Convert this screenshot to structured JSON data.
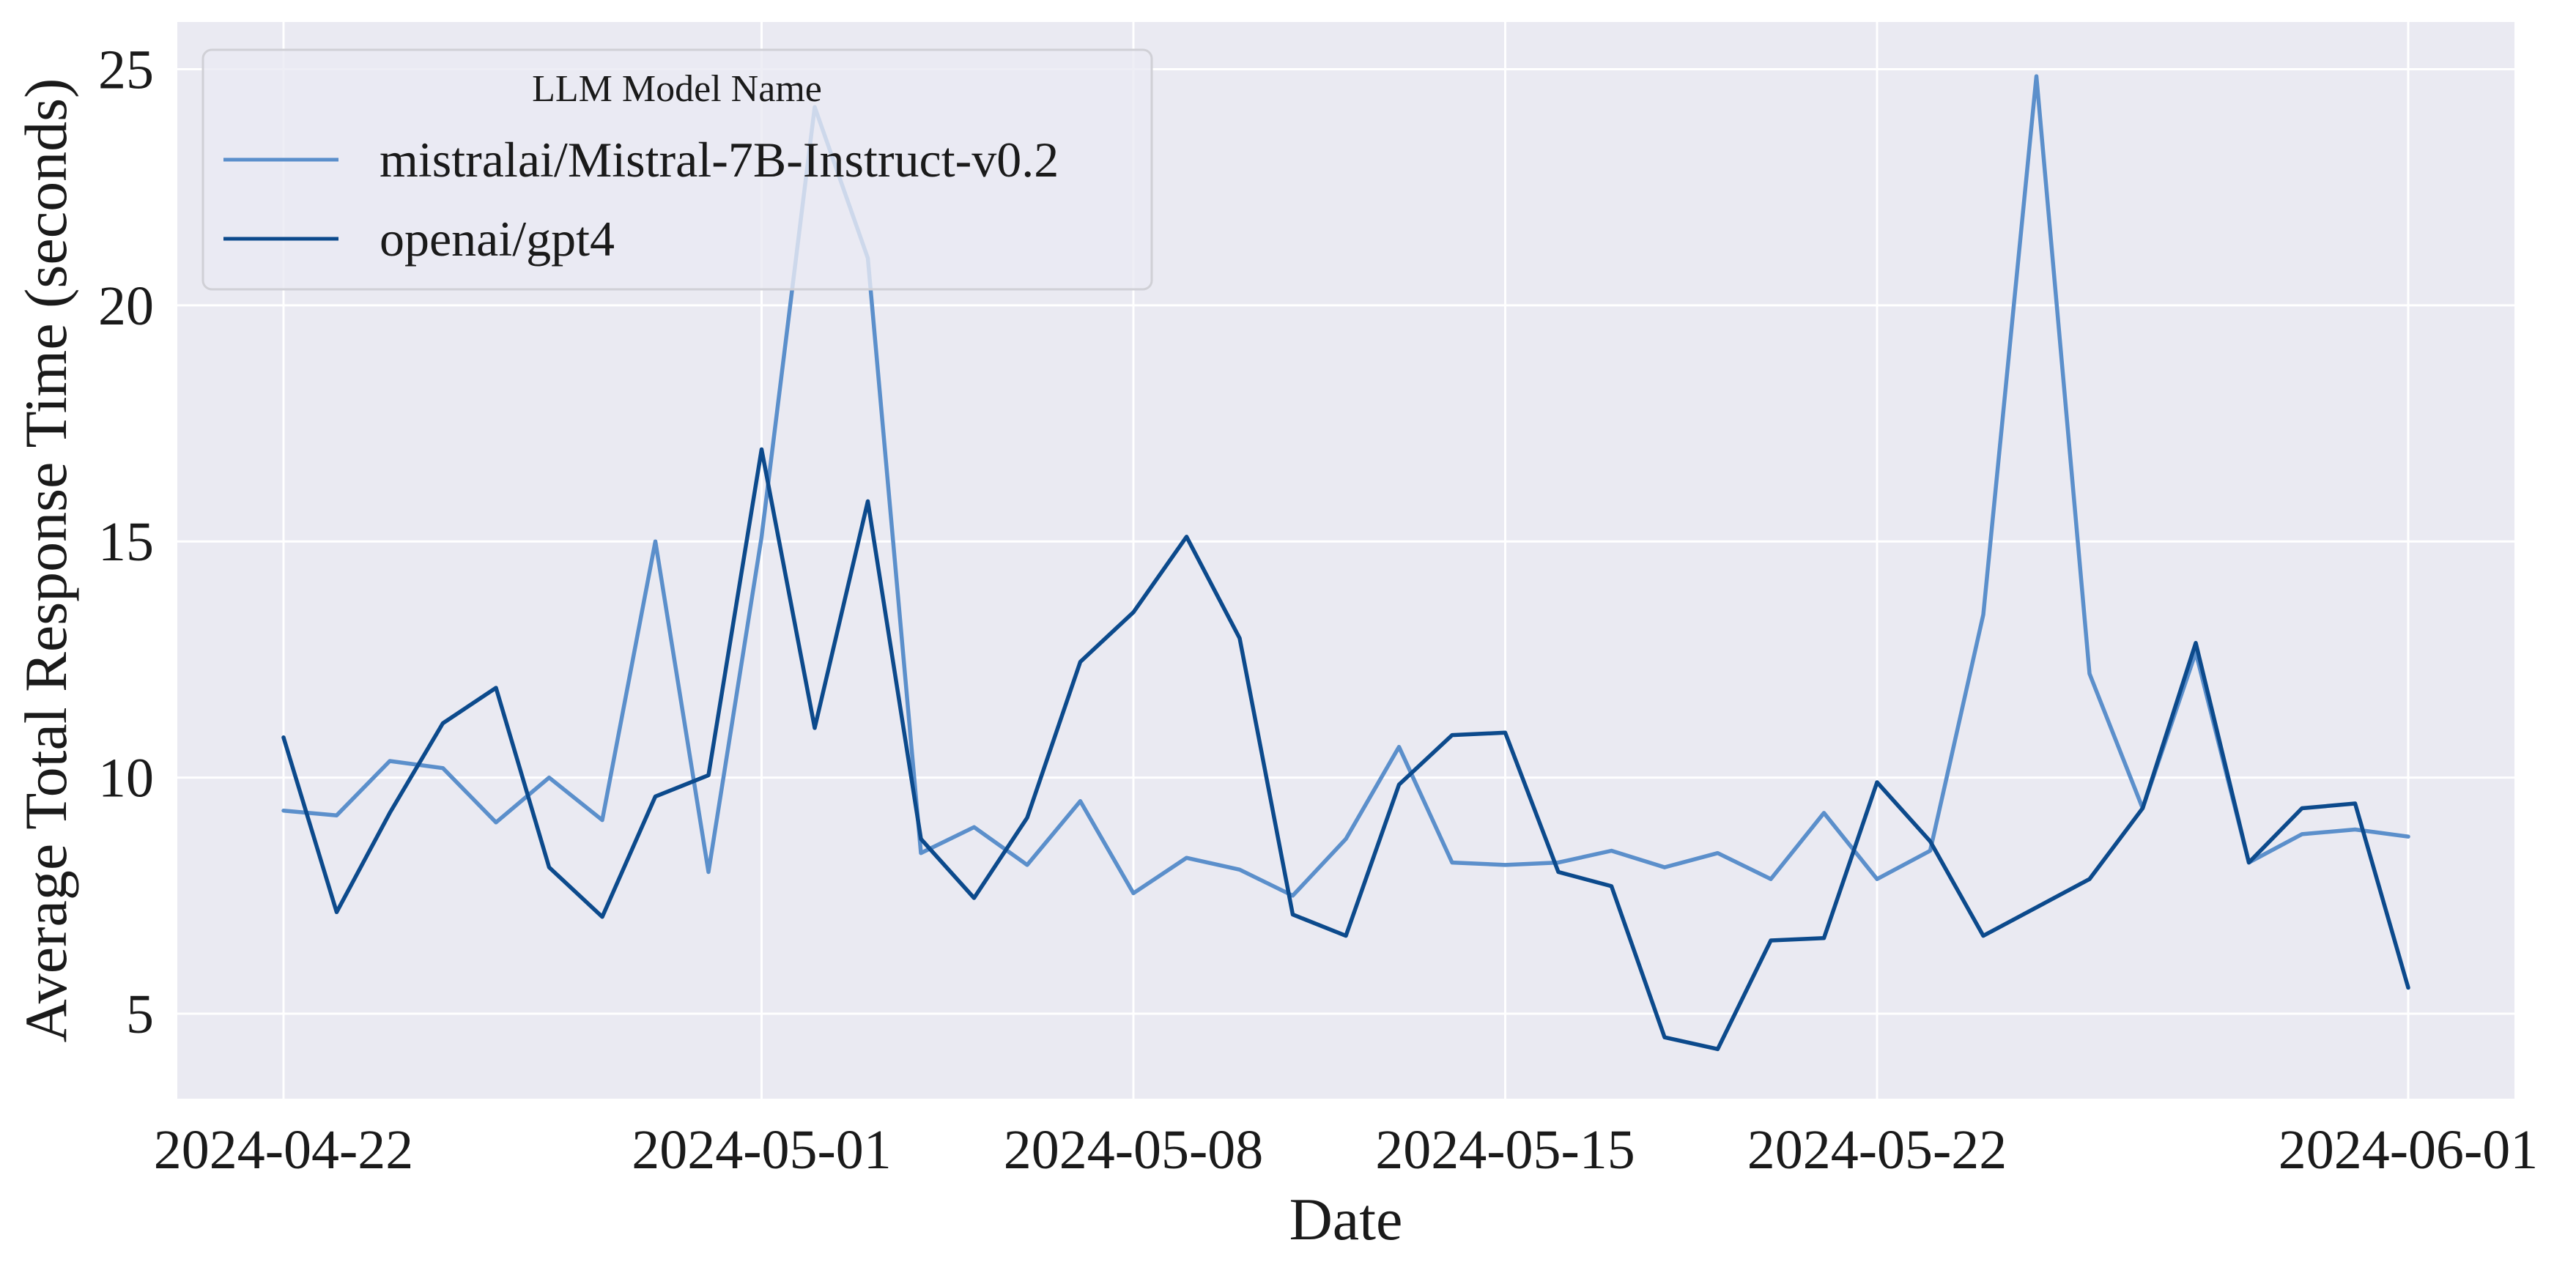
{
  "chart_data": {
    "type": "line",
    "title": "",
    "xlabel": "Date",
    "ylabel": "Average Total Response Time (seconds)",
    "xlim": [
      "2024-04-20",
      "2024-06-03"
    ],
    "ylim": [
      3.2,
      26.0
    ],
    "yticks": [
      5,
      10,
      15,
      20,
      25
    ],
    "xticks": [
      "2024-04-22",
      "2024-05-01",
      "2024-05-08",
      "2024-05-15",
      "2024-05-22",
      "2024-06-01"
    ],
    "grid": true,
    "legend": {
      "title": "LLM Model Name",
      "position": "top-left"
    },
    "series": [
      {
        "name": "mistralai/Mistral-7B-Instruct-v0.2",
        "color": "#5b8fcb",
        "points": [
          [
            "2024-04-22",
            9.3
          ],
          [
            "2024-04-23",
            9.2
          ],
          [
            "2024-04-24",
            10.35
          ],
          [
            "2024-04-25",
            10.2
          ],
          [
            "2024-04-26",
            9.05
          ],
          [
            "2024-04-27",
            10.0
          ],
          [
            "2024-04-28",
            9.1
          ],
          [
            "2024-04-29",
            15.0
          ],
          [
            "2024-04-30",
            8.0
          ],
          [
            "2024-05-01",
            15.1
          ],
          [
            "2024-05-02",
            24.2
          ],
          [
            "2024-05-03",
            21.0
          ],
          [
            "2024-05-04",
            8.4
          ],
          [
            "2024-05-05",
            8.95
          ],
          [
            "2024-05-06",
            8.15
          ],
          [
            "2024-05-07",
            9.5
          ],
          [
            "2024-05-08",
            7.55
          ],
          [
            "2024-05-09",
            8.3
          ],
          [
            "2024-05-10",
            8.05
          ],
          [
            "2024-05-11",
            7.5
          ],
          [
            "2024-05-12",
            8.7
          ],
          [
            "2024-05-13",
            10.65
          ],
          [
            "2024-05-14",
            8.2
          ],
          [
            "2024-05-15",
            8.15
          ],
          [
            "2024-05-16",
            8.2
          ],
          [
            "2024-05-17",
            8.45
          ],
          [
            "2024-05-18",
            8.1
          ],
          [
            "2024-05-19",
            8.4
          ],
          [
            "2024-05-20",
            7.85
          ],
          [
            "2024-05-21",
            9.25
          ],
          [
            "2024-05-22",
            7.85
          ],
          [
            "2024-05-23",
            8.45
          ],
          [
            "2024-05-24",
            13.45
          ],
          [
            "2024-05-25",
            24.85
          ],
          [
            "2024-05-26",
            12.2
          ],
          [
            "2024-05-27",
            9.35
          ],
          [
            "2024-05-28",
            12.65
          ],
          [
            "2024-05-29",
            8.2
          ],
          [
            "2024-05-30",
            8.8
          ],
          [
            "2024-05-31",
            8.9
          ],
          [
            "2024-06-01",
            8.75
          ]
        ]
      },
      {
        "name": "openai/gpt4",
        "color": "#0c4a8c",
        "points": [
          [
            "2024-04-22",
            10.85
          ],
          [
            "2024-04-23",
            7.15
          ],
          [
            "2024-04-24",
            9.25
          ],
          [
            "2024-04-25",
            11.15
          ],
          [
            "2024-04-26",
            11.9
          ],
          [
            "2024-04-27",
            8.1
          ],
          [
            "2024-04-28",
            7.05
          ],
          [
            "2024-04-29",
            9.6
          ],
          [
            "2024-04-30",
            10.05
          ],
          [
            "2024-05-01",
            16.95
          ],
          [
            "2024-05-02",
            11.05
          ],
          [
            "2024-05-03",
            15.85
          ],
          [
            "2024-05-04",
            8.7
          ],
          [
            "2024-05-05",
            7.45
          ],
          [
            "2024-05-06",
            9.15
          ],
          [
            "2024-05-07",
            12.45
          ],
          [
            "2024-05-08",
            13.5
          ],
          [
            "2024-05-09",
            15.1
          ],
          [
            "2024-05-10",
            12.95
          ],
          [
            "2024-05-11",
            7.1
          ],
          [
            "2024-05-12",
            6.65
          ],
          [
            "2024-05-13",
            9.85
          ],
          [
            "2024-05-14",
            10.9
          ],
          [
            "2024-05-15",
            10.95
          ],
          [
            "2024-05-16",
            8.0
          ],
          [
            "2024-05-17",
            7.7
          ],
          [
            "2024-05-18",
            4.5
          ],
          [
            "2024-05-19",
            4.25
          ],
          [
            "2024-05-20",
            6.55
          ],
          [
            "2024-05-21",
            6.6
          ],
          [
            "2024-05-22",
            9.9
          ],
          [
            "2024-05-23",
            8.65
          ],
          [
            "2024-05-24",
            6.65
          ],
          [
            "2024-05-26",
            7.85
          ],
          [
            "2024-05-27",
            9.35
          ],
          [
            "2024-05-28",
            12.85
          ],
          [
            "2024-05-29",
            8.2
          ],
          [
            "2024-05-30",
            9.35
          ],
          [
            "2024-05-31",
            9.45
          ],
          [
            "2024-06-01",
            5.55
          ]
        ]
      }
    ]
  }
}
